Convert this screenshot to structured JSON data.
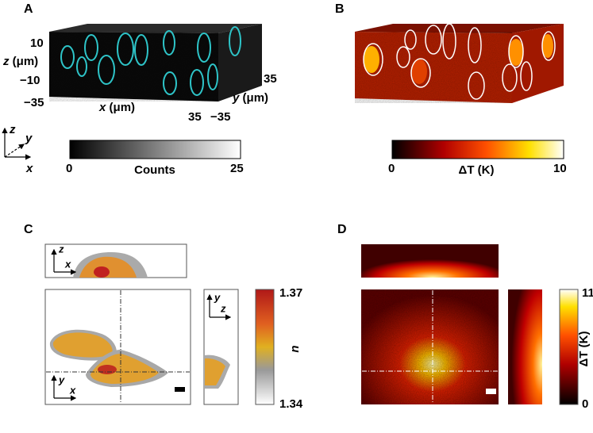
{
  "panel_a": {
    "label": "A",
    "z_max": "10",
    "z_var": "z",
    "z_unit": "(μm)",
    "z_min": "−10",
    "x_min": "−35",
    "x_var": "x",
    "x_unit": "(μm)",
    "x_max": "35",
    "y_min": "−35",
    "y_var": "y",
    "y_unit": "(μm)",
    "y_max": "35",
    "colorbar": {
      "min": 0,
      "label": "Counts",
      "max": 25
    }
  },
  "axes_key": {
    "z": "z",
    "y": "y",
    "x": "x"
  },
  "panel_b": {
    "label": "B",
    "colorbar": {
      "min": 0,
      "label": "ΔT (K)",
      "max": 10
    }
  },
  "panel_c": {
    "label": "C",
    "xz_axes": [
      "z",
      "x"
    ],
    "yz_axes": [
      "y",
      "z"
    ],
    "xy_axes": [
      "y",
      "x"
    ],
    "colorbar": {
      "max": 1.37,
      "label": "n",
      "min": 1.34
    }
  },
  "panel_d": {
    "label": "D",
    "colorbar": {
      "max": 11,
      "label": "ΔT (K)",
      "min": 0
    }
  }
}
